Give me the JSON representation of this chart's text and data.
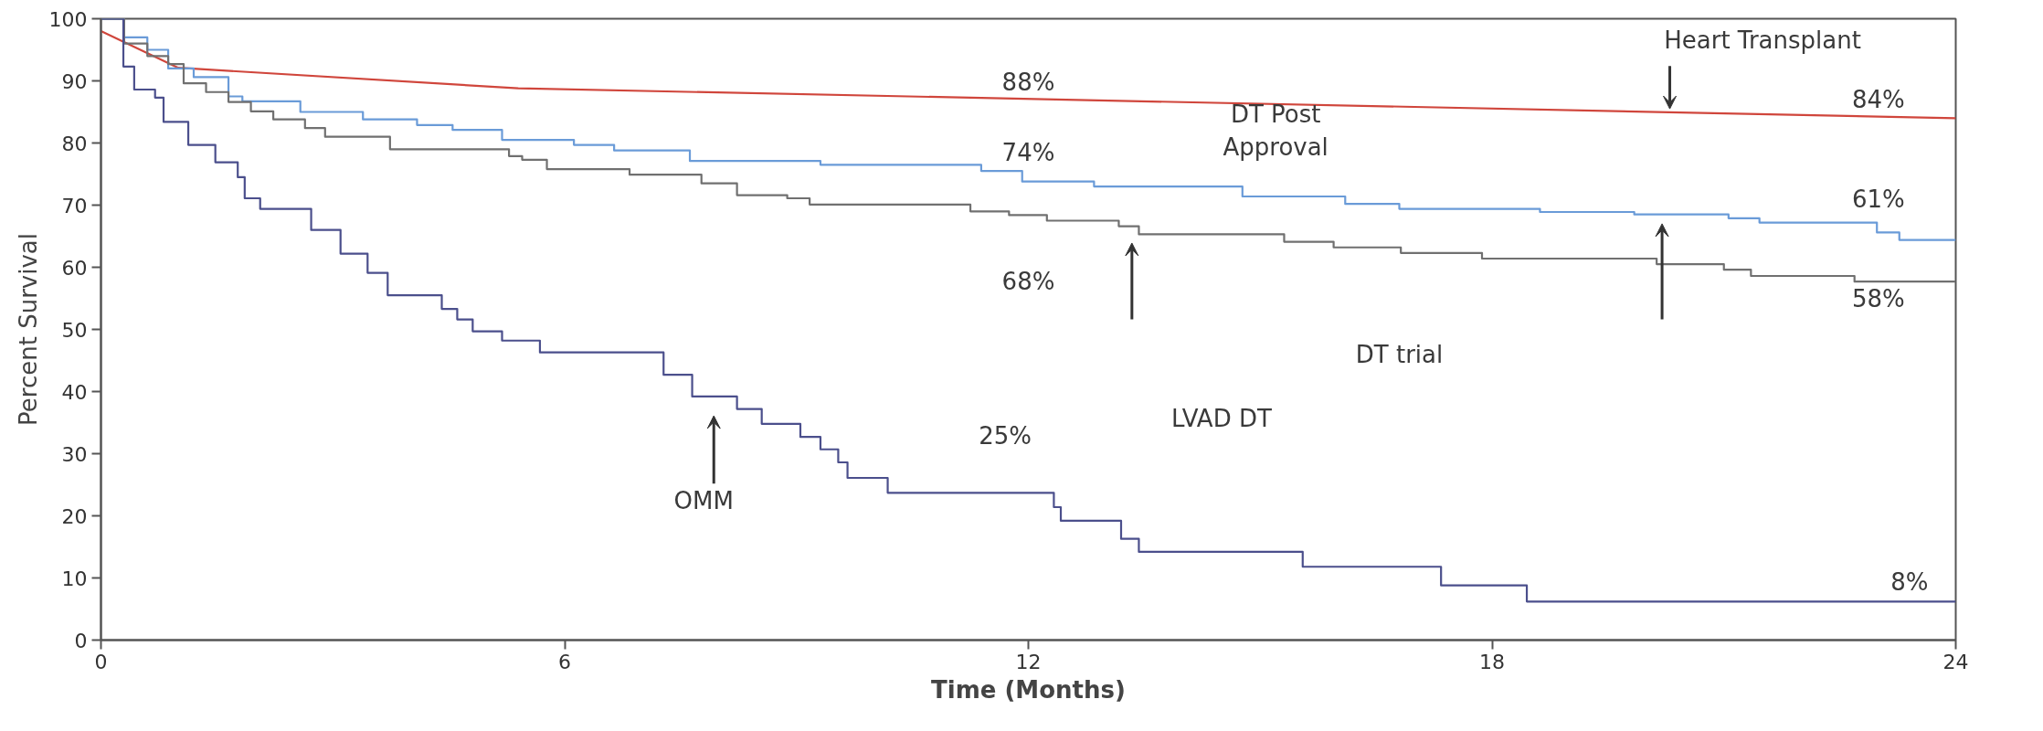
{
  "chart_data": {
    "type": "step",
    "xlabel": "Time (Months)",
    "ylabel": "Percent Survival",
    "xlim": [
      0,
      24
    ],
    "ylim": [
      0,
      100
    ],
    "xticks": [
      0,
      6,
      12,
      18,
      24
    ],
    "yticks": [
      0,
      10,
      20,
      30,
      40,
      50,
      60,
      70,
      80,
      90,
      100
    ],
    "grid": false,
    "series": [
      {
        "type": "line",
        "color": "#d0463c",
        "x": [
          0,
          1,
          5.4,
          24
        ],
        "values": [
          98,
          92.1,
          88.8,
          84
        ]
      },
      {
        "color": "#6a9bd8",
        "x": [
          0,
          0.3,
          0.6,
          0.87,
          1.2,
          1.65,
          1.83,
          2.58,
          3.39,
          4.09,
          4.55,
          5.19,
          6.12,
          6.64,
          7.62,
          9.31,
          11.39,
          11.92,
          12.85,
          14.77,
          16.1,
          16.8,
          18.62,
          19.84,
          21.06,
          21.46,
          22.98,
          23.27,
          24
        ],
        "values": [
          100,
          97,
          95,
          92,
          90.6,
          87.5,
          86.7,
          85,
          83.8,
          82.9,
          82.1,
          80.5,
          79.7,
          78.8,
          77.1,
          76.5,
          75.5,
          73.8,
          73,
          71.4,
          70.2,
          69.4,
          68.9,
          68.5,
          67.9,
          67.2,
          65.6,
          64.4,
          64.4
        ]
      },
      {
        "color": "#707070",
        "x": [
          0,
          0.3,
          0.6,
          0.87,
          1.07,
          1.36,
          1.65,
          1.94,
          2.23,
          2.64,
          2.9,
          3.74,
          5.28,
          5.45,
          5.77,
          6.84,
          7.77,
          8.23,
          8.88,
          9.17,
          11.25,
          11.75,
          12.24,
          13.17,
          13.43,
          15.31,
          15.95,
          16.82,
          17.87,
          20.13,
          21.0,
          21.35,
          22.69,
          24
        ],
        "values": [
          100,
          96,
          94,
          92.7,
          89.6,
          88.2,
          86.6,
          85.1,
          83.8,
          82.4,
          81,
          79,
          77.9,
          77.3,
          75.8,
          74.9,
          73.5,
          71.6,
          71.1,
          70.1,
          69,
          68.4,
          67.5,
          66.6,
          65.3,
          64.1,
          63.2,
          62.3,
          61.4,
          60.5,
          59.6,
          58.6,
          57.7,
          57.7
        ]
      },
      {
        "color": "#4b4f8c",
        "x": [
          0,
          0.29,
          0.43,
          0.7,
          0.81,
          1.13,
          1.48,
          1.77,
          1.86,
          2.06,
          2.72,
          3.1,
          3.45,
          3.71,
          4.41,
          4.61,
          4.81,
          5.19,
          5.68,
          7.28,
          7.65,
          8.23,
          8.55,
          9.05,
          9.31,
          9.54,
          9.66,
          10.18,
          12.33,
          12.42,
          13.2,
          13.43,
          15.55,
          17.34,
          18.45,
          24
        ],
        "values": [
          100,
          92.3,
          88.6,
          87.3,
          83.4,
          79.7,
          76.9,
          74.5,
          71.1,
          69.4,
          66,
          62.2,
          59.1,
          55.5,
          53.3,
          51.6,
          49.7,
          48.2,
          46.3,
          42.7,
          39.2,
          37.2,
          34.8,
          32.7,
          30.7,
          28.6,
          26.1,
          23.7,
          21.4,
          19.2,
          16.3,
          14.2,
          11.8,
          8.8,
          6.2,
          6.2
        ]
      }
    ],
    "annotations": [
      {
        "text": "Heart Transplant",
        "x": 20.3,
        "y": 85.0
      },
      "88%",
      "84%",
      "74%",
      "DT Post\nApproval",
      "61%",
      "68%",
      "DT trial",
      "58%",
      "LVAD DT",
      "OMM",
      "25%",
      "8%"
    ]
  }
}
